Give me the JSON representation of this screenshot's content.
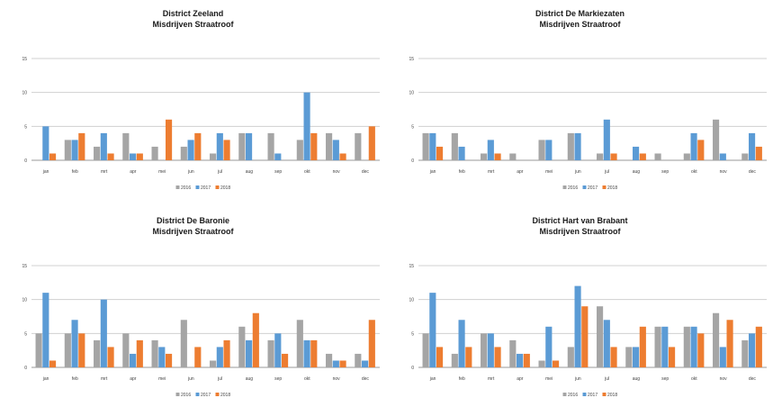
{
  "colors": {
    "2016": "#a5a5a5",
    "2017": "#5b9bd5",
    "2018": "#ed7d31",
    "grid": "#d0d0d0",
    "axis": "#9a9a9a",
    "text": "#444444"
  },
  "chart_data": [
    {
      "type": "bar",
      "title": "District Zeeland",
      "subtitle": "Misdrijven Straatroof",
      "categories": [
        "jan",
        "feb",
        "mrt",
        "apr",
        "mei",
        "jun",
        "jul",
        "aug",
        "sep",
        "okt",
        "nov",
        "dec"
      ],
      "series": [
        {
          "name": "2016",
          "values": [
            0,
            3,
            2,
            4,
            2,
            2,
            1,
            4,
            4,
            3,
            4,
            4
          ]
        },
        {
          "name": "2017",
          "values": [
            5,
            3,
            4,
            1,
            0,
            3,
            4,
            4,
            1,
            10,
            3,
            0
          ]
        },
        {
          "name": "2018",
          "values": [
            1,
            4,
            1,
            1,
            6,
            4,
            3,
            0,
            0,
            4,
            1,
            5
          ]
        }
      ],
      "ylim": [
        0,
        15
      ],
      "yticks": [
        "0",
        "5",
        "10",
        "15"
      ],
      "grid": true,
      "legend": "bottom"
    },
    {
      "type": "bar",
      "title": "District De Markiezaten",
      "subtitle": "Misdrijven Straatroof",
      "categories": [
        "jan",
        "feb",
        "mrt",
        "apr",
        "mei",
        "jun",
        "jul",
        "aug",
        "sep",
        "okt",
        "nov",
        "dec"
      ],
      "series": [
        {
          "name": "2016",
          "values": [
            4,
            4,
            1,
            1,
            3,
            4,
            1,
            0,
            1,
            1,
            6,
            1
          ]
        },
        {
          "name": "2017",
          "values": [
            4,
            2,
            3,
            0,
            3,
            4,
            6,
            2,
            0,
            4,
            1,
            4
          ]
        },
        {
          "name": "2018",
          "values": [
            2,
            0,
            1,
            0,
            0,
            0,
            1,
            1,
            0,
            3,
            0,
            2
          ]
        }
      ],
      "ylim": [
        0,
        15
      ],
      "yticks": [
        "0",
        "5",
        "10",
        "15"
      ],
      "grid": true,
      "legend": "bottom"
    },
    {
      "type": "bar",
      "title": "District De Baronie",
      "subtitle": "Misdrijven Straatroof",
      "categories": [
        "jan",
        "feb",
        "mrt",
        "apr",
        "mei",
        "jun",
        "jul",
        "aug",
        "sep",
        "okt",
        "nov",
        "dec"
      ],
      "series": [
        {
          "name": "2016",
          "values": [
            5,
            5,
            4,
            5,
            4,
            7,
            1,
            6,
            4,
            7,
            2,
            2
          ]
        },
        {
          "name": "2017",
          "values": [
            11,
            7,
            10,
            2,
            3,
            0,
            3,
            4,
            5,
            4,
            1,
            1
          ]
        },
        {
          "name": "2018",
          "values": [
            1,
            5,
            3,
            4,
            2,
            3,
            4,
            8,
            2,
            4,
            1,
            7
          ]
        }
      ],
      "ylim": [
        0,
        15
      ],
      "yticks": [
        "0",
        "5",
        "10",
        "15"
      ],
      "grid": true,
      "legend": "bottom"
    },
    {
      "type": "bar",
      "title": "District Hart van Brabant",
      "subtitle": "Misdrijven Straatroof",
      "categories": [
        "jan",
        "feb",
        "mrt",
        "apr",
        "mei",
        "jun",
        "jul",
        "aug",
        "sep",
        "okt",
        "nov",
        "dec"
      ],
      "series": [
        {
          "name": "2016",
          "values": [
            5,
            2,
            5,
            4,
            1,
            3,
            9,
            3,
            6,
            6,
            8,
            4
          ]
        },
        {
          "name": "2017",
          "values": [
            11,
            7,
            5,
            2,
            6,
            12,
            7,
            3,
            6,
            6,
            3,
            5
          ]
        },
        {
          "name": "2018",
          "values": [
            3,
            3,
            3,
            2,
            1,
            9,
            3,
            6,
            3,
            5,
            7,
            6
          ]
        }
      ],
      "ylim": [
        0,
        15
      ],
      "yticks": [
        "0",
        "5",
        "10",
        "15"
      ],
      "grid": true,
      "legend": "bottom"
    }
  ]
}
